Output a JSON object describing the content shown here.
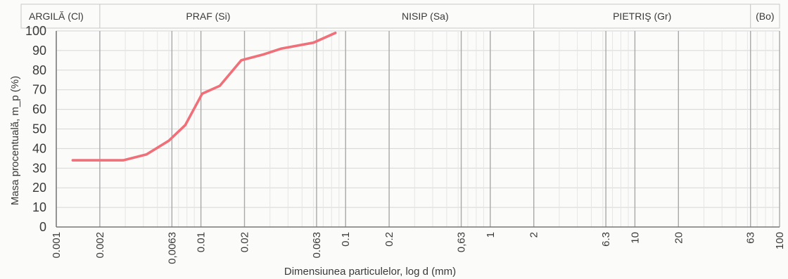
{
  "chart_data": {
    "type": "line",
    "x_scale": "log",
    "xlim": [
      0.001,
      100
    ],
    "ylim": [
      0,
      100
    ],
    "ylabel": "Masa procentuală, m_p (%)",
    "xlabel": "Dimensiunea particulelor, log d (mm)",
    "grid": true,
    "y_ticks": [
      "0",
      "10",
      "20",
      "30",
      "40",
      "50",
      "60",
      "70",
      "80",
      "90",
      "100"
    ],
    "x_ticks": [
      {
        "label": "0.001",
        "value": 0.001
      },
      {
        "label": "0.002",
        "value": 0.002
      },
      {
        "label": "0,0063",
        "value": 0.0063
      },
      {
        "label": "0.01",
        "value": 0.01
      },
      {
        "label": "0.02",
        "value": 0.02
      },
      {
        "label": "0.063",
        "value": 0.063
      },
      {
        "label": "0.1",
        "value": 0.1
      },
      {
        "label": "0.2",
        "value": 0.2
      },
      {
        "label": "0,63",
        "value": 0.63
      },
      {
        "label": "1",
        "value": 1
      },
      {
        "label": "2",
        "value": 2
      },
      {
        "label": "6.3",
        "value": 6.3
      },
      {
        "label": "10",
        "value": 10
      },
      {
        "label": "20",
        "value": 20
      },
      {
        "label": "63",
        "value": 63
      },
      {
        "label": "100",
        "value": 100
      }
    ],
    "bands": [
      {
        "label": "ARGILĂ (Cl)",
        "from": 0.001,
        "to": 0.002
      },
      {
        "label": "PRAF (Si)",
        "from": 0.002,
        "to": 0.063
      },
      {
        "label": "NISIP (Sa)",
        "from": 0.063,
        "to": 2
      },
      {
        "label": "PIETRIŞ (Gr)",
        "from": 2,
        "to": 63
      },
      {
        "label": "(Bo)",
        "from": 63,
        "to": 100
      }
    ],
    "series": [
      {
        "color": "#f0707a",
        "x": [
          0.0013,
          0.0029,
          0.0042,
          0.006,
          0.0078,
          0.0102,
          0.0135,
          0.019,
          0.027,
          0.036,
          0.06,
          0.085
        ],
        "y": [
          34,
          34,
          37,
          44,
          52,
          68,
          72,
          85,
          88,
          91,
          94,
          99
        ]
      }
    ]
  }
}
